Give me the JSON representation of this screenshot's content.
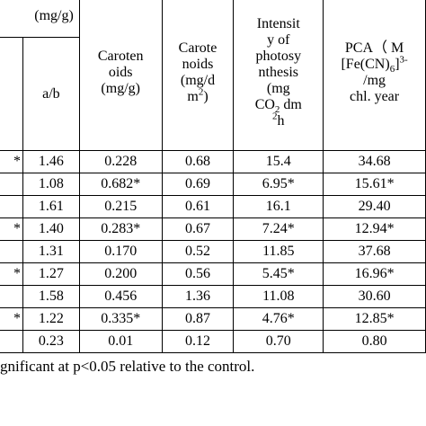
{
  "table": {
    "group_header": "(mg/g)",
    "sub_header": "a/b",
    "headers": [
      [
        [
          "Caroten"
        ],
        [
          "oids"
        ],
        [
          "(mg/g)"
        ]
      ],
      [
        [
          "Carote"
        ],
        [
          "noids"
        ],
        [
          "(mg/d"
        ],
        [
          "m",
          {
            "t": "2",
            "s": "sup"
          },
          ")"
        ]
      ],
      [
        [
          "Intensit"
        ],
        [
          "y of"
        ],
        [
          "photosy"
        ],
        [
          "nthesis"
        ],
        [
          "(mg"
        ],
        [
          "CO",
          {
            "t": "2",
            "s": "sub"
          },
          " dm"
        ],
        [
          {
            "t": "2",
            "s": "sup"
          },
          "h"
        ]
      ],
      [
        [
          "PCA（ M"
        ],
        [
          "[Fe(CN)",
          {
            "t": "6",
            "s": "sub"
          },
          "]",
          {
            "t": "3-",
            "s": "sup"
          }
        ],
        [
          "/mg"
        ],
        [
          "chl. year"
        ]
      ]
    ],
    "rows": [
      [
        "*",
        "1.46",
        "0.228",
        "0.68",
        "15.4",
        "34.68"
      ],
      [
        null,
        "1.08",
        "0.682*",
        "0.69",
        "6.95*",
        "15.61*"
      ],
      [
        null,
        "1.61",
        "0.215",
        "0.61",
        "16.1",
        "29.40"
      ],
      [
        "*",
        "1.40",
        "0.283*",
        "0.67",
        "7.24*",
        "12.94*"
      ],
      [
        null,
        "1.31",
        "0.170",
        "0.52",
        "11.85",
        "37.68"
      ],
      [
        "*",
        "1.27",
        "0.200",
        "0.56",
        "5.45*",
        "16.96*"
      ],
      [
        null,
        "1.58",
        "0.456",
        "1.36",
        "11.08",
        "30.60"
      ],
      [
        "*",
        "1.22",
        "0.335*",
        "0.87",
        "4.76*",
        "12.85*"
      ],
      [
        null,
        "0.23",
        "0.01",
        "0.12",
        "0.70",
        "0.80"
      ]
    ],
    "footnote": "gnificant at p<0.05 relative to the control."
  }
}
